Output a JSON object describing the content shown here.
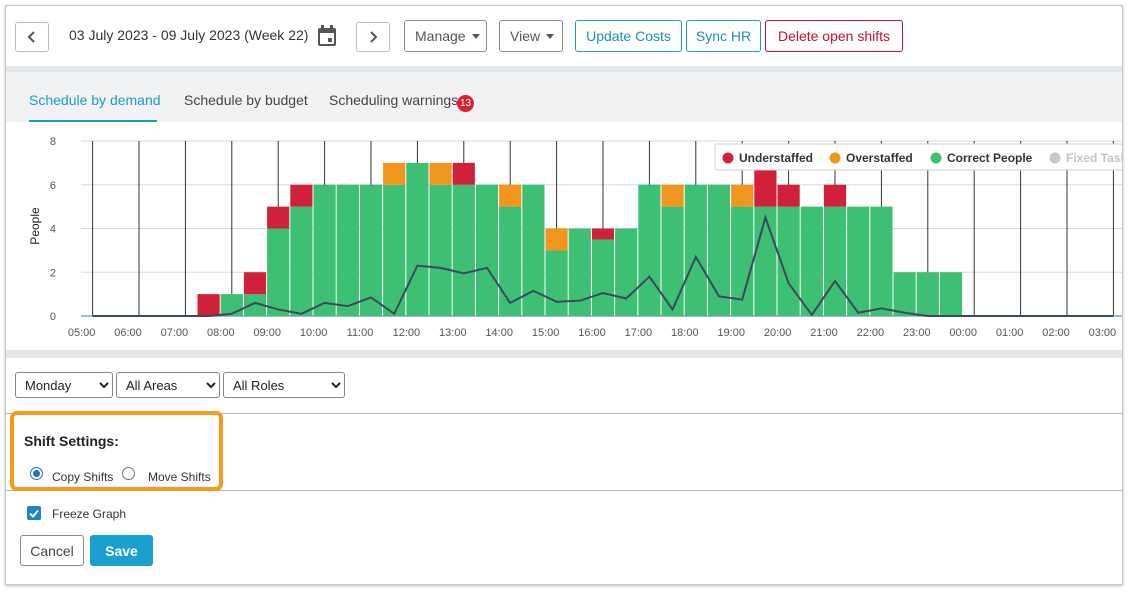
{
  "toolbar": {
    "prev_icon": "chevron-left-icon",
    "date_range": "03 July 2023 - 09 July 2023 (Week 22)",
    "calendar_icon": "calendar-icon",
    "next_icon": "chevron-right-icon",
    "manage_label": "Manage",
    "view_label": "View",
    "update_costs_label": "Update Costs",
    "sync_hr_label": "Sync HR",
    "delete_open_shifts_label": "Delete open shifts"
  },
  "tabs": [
    {
      "label": "Schedule by demand",
      "active": true
    },
    {
      "label": "Schedule by budget",
      "active": false
    },
    {
      "label": "Scheduling warnings",
      "active": false,
      "badge": "13"
    }
  ],
  "chart_data": {
    "type": "bar",
    "ylabel": "People",
    "ylim": [
      0,
      8
    ],
    "yticks": [
      0,
      2,
      4,
      6,
      8
    ],
    "xticks": [
      "05:00",
      "06:00",
      "07:00",
      "08:00",
      "09:00",
      "10:00",
      "11:00",
      "12:00",
      "13:00",
      "14:00",
      "15:00",
      "16:00",
      "17:00",
      "18:00",
      "19:00",
      "20:00",
      "21:00",
      "22:00",
      "23:00",
      "00:00",
      "01:00",
      "02:00",
      "03:00"
    ],
    "legend_position": "top-right",
    "legend": [
      {
        "name": "Understaffed",
        "color": "#d0203a"
      },
      {
        "name": "Overstaffed",
        "color": "#f0961e"
      },
      {
        "name": "Correct People",
        "color": "#3dbf74"
      },
      {
        "name": "Fixed Task",
        "color": "#c8c8c8"
      }
    ],
    "bar_width_hours": 0.5,
    "bars": [
      {
        "start": "07:30",
        "correct": 0,
        "understaffed": 1,
        "overstaffed": 0
      },
      {
        "start": "08:00",
        "correct": 1,
        "understaffed": 0,
        "overstaffed": 0
      },
      {
        "start": "08:30",
        "correct": 1,
        "understaffed": 1,
        "overstaffed": 0
      },
      {
        "start": "09:00",
        "correct": 4,
        "understaffed": 1,
        "overstaffed": 0
      },
      {
        "start": "09:30",
        "correct": 5,
        "understaffed": 1,
        "overstaffed": 0
      },
      {
        "start": "10:00",
        "correct": 6,
        "understaffed": 0,
        "overstaffed": 0
      },
      {
        "start": "10:30",
        "correct": 6,
        "understaffed": 0,
        "overstaffed": 0
      },
      {
        "start": "11:00",
        "correct": 6,
        "understaffed": 0,
        "overstaffed": 0
      },
      {
        "start": "11:30",
        "correct": 6,
        "understaffed": 0,
        "overstaffed": 1
      },
      {
        "start": "12:00",
        "correct": 7,
        "understaffed": 0,
        "overstaffed": 0
      },
      {
        "start": "12:30",
        "correct": 6,
        "understaffed": 0,
        "overstaffed": 1
      },
      {
        "start": "13:00",
        "correct": 6,
        "understaffed": 1,
        "overstaffed": 0
      },
      {
        "start": "13:30",
        "correct": 6,
        "understaffed": 0,
        "overstaffed": 0
      },
      {
        "start": "14:00",
        "correct": 5,
        "understaffed": 0,
        "overstaffed": 1
      },
      {
        "start": "14:30",
        "correct": 6,
        "understaffed": 0,
        "overstaffed": 0
      },
      {
        "start": "15:00",
        "correct": 3,
        "understaffed": 0,
        "overstaffed": 1
      },
      {
        "start": "15:30",
        "correct": 4,
        "understaffed": 0,
        "overstaffed": 0
      },
      {
        "start": "16:00",
        "correct": 3.5,
        "understaffed": 0.5,
        "overstaffed": 0
      },
      {
        "start": "16:30",
        "correct": 4,
        "understaffed": 0,
        "overstaffed": 0
      },
      {
        "start": "17:00",
        "correct": 6,
        "understaffed": 0,
        "overstaffed": 0
      },
      {
        "start": "17:30",
        "correct": 5,
        "understaffed": 0,
        "overstaffed": 1
      },
      {
        "start": "18:00",
        "correct": 6,
        "understaffed": 0,
        "overstaffed": 0
      },
      {
        "start": "18:30",
        "correct": 6,
        "understaffed": 0,
        "overstaffed": 0
      },
      {
        "start": "19:00",
        "correct": 5,
        "understaffed": 0,
        "overstaffed": 1
      },
      {
        "start": "19:30",
        "correct": 5,
        "understaffed": 2,
        "overstaffed": 0
      },
      {
        "start": "20:00",
        "correct": 5,
        "understaffed": 1,
        "overstaffed": 0
      },
      {
        "start": "20:30",
        "correct": 5,
        "understaffed": 0,
        "overstaffed": 0
      },
      {
        "start": "21:00",
        "correct": 5,
        "understaffed": 1,
        "overstaffed": 0
      },
      {
        "start": "21:30",
        "correct": 5,
        "understaffed": 0,
        "overstaffed": 0
      },
      {
        "start": "22:00",
        "correct": 5,
        "understaffed": 0,
        "overstaffed": 0
      },
      {
        "start": "22:30",
        "correct": 2,
        "understaffed": 0,
        "overstaffed": 0
      },
      {
        "start": "23:00",
        "correct": 2,
        "understaffed": 0,
        "overstaffed": 0
      },
      {
        "start": "23:30",
        "correct": 2,
        "understaffed": 0,
        "overstaffed": 0
      }
    ],
    "demand_line": {
      "x_hours": [
        5.25,
        7.75,
        8.25,
        8.75,
        9.25,
        9.75,
        10.25,
        10.75,
        11.25,
        11.75,
        12.25,
        12.75,
        13.25,
        13.75,
        14.25,
        14.75,
        15.25,
        15.75,
        16.25,
        16.75,
        17.25,
        17.75,
        18.25,
        18.75,
        19.25,
        19.75,
        20.25,
        20.75,
        21.25,
        21.75,
        22.25,
        22.75,
        23.25,
        27.25
      ],
      "values": [
        0,
        0,
        0.1,
        0.6,
        0.3,
        0.1,
        0.6,
        0.45,
        0.85,
        0.1,
        2.3,
        2.2,
        1.95,
        2.2,
        0.6,
        1.15,
        0.65,
        0.7,
        1.05,
        0.8,
        1.8,
        0.3,
        2.7,
        0.9,
        0.75,
        4.5,
        1.5,
        0.05,
        1.6,
        0.15,
        0.35,
        0.15,
        0,
        0
      ]
    }
  },
  "filters": {
    "day": {
      "value": "Monday",
      "options": [
        "Monday"
      ]
    },
    "area": {
      "value": "All Areas",
      "options": [
        "All Areas"
      ]
    },
    "role": {
      "value": "All Roles",
      "options": [
        "All Roles"
      ]
    }
  },
  "settings": {
    "title": "Shift Settings:",
    "copy_label": "Copy Shifts",
    "move_label": "Move Shifts",
    "selected": "copy",
    "freeze_label": "Freeze Graph",
    "freeze_checked": true,
    "cancel_label": "Cancel",
    "save_label": "Save"
  },
  "colors": {
    "accent": "#1a9dc4",
    "danger": "#c8102e",
    "highlight": "#f59a1b",
    "save": "#1b9fd1"
  }
}
